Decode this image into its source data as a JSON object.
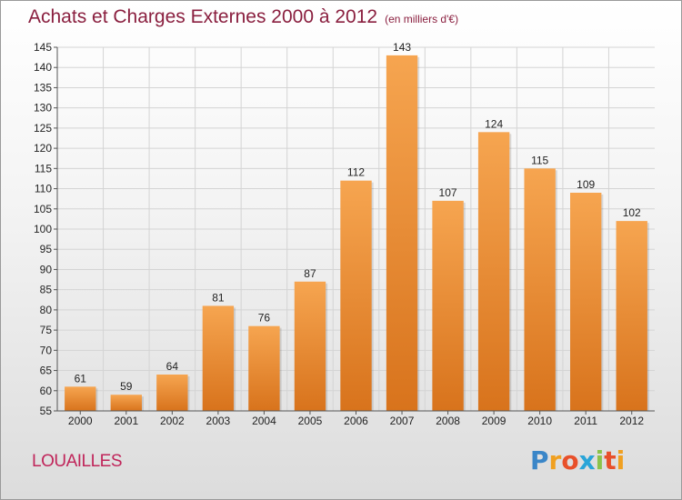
{
  "title": "Achats et Charges Externes 2000 à 2012",
  "unit": "(en milliers d'€)",
  "place": "LOUAILLES",
  "logo": {
    "text": "Proxiti",
    "letters": [
      {
        "char": "P",
        "color": "#3a86c8"
      },
      {
        "char": "r",
        "color": "#f0a020"
      },
      {
        "char": "o",
        "color": "#e8502a"
      },
      {
        "char": "x",
        "color": "#2aa5d8"
      },
      {
        "char": "i",
        "color": "#8bc34a"
      },
      {
        "char": "t",
        "color": "#e8502a"
      },
      {
        "char": "i",
        "color": "#f0a020"
      }
    ]
  },
  "chart_data": {
    "type": "bar",
    "categories": [
      "2000",
      "2001",
      "2002",
      "2003",
      "2004",
      "2005",
      "2006",
      "2007",
      "2008",
      "2009",
      "2010",
      "2011",
      "2012"
    ],
    "values": [
      61,
      59,
      64,
      81,
      76,
      87,
      112,
      143,
      107,
      124,
      115,
      109,
      102
    ],
    "ylim": [
      55,
      145
    ],
    "yticks": [
      55,
      60,
      65,
      70,
      75,
      80,
      85,
      90,
      95,
      100,
      105,
      110,
      115,
      120,
      125,
      130,
      135,
      140,
      145
    ],
    "grid": true,
    "bar_color_top": "#f6a550",
    "bar_color_bottom": "#d8731c",
    "grid_color": "#d4d4d4"
  }
}
